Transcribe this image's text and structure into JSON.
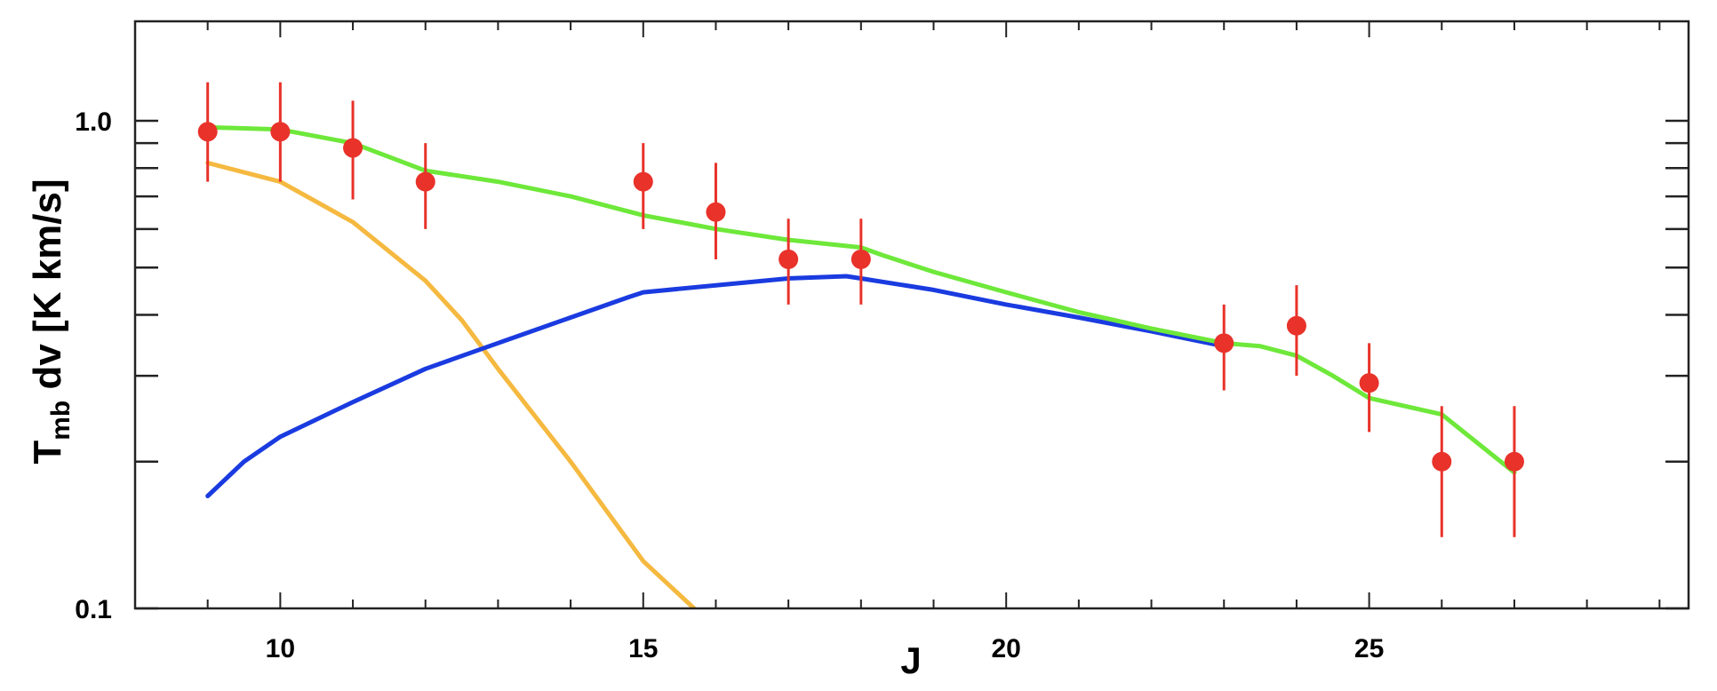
{
  "chart_data": {
    "type": "line",
    "title": "",
    "xlabel": "J",
    "ylabel": {
      "main": "T",
      "sub": "mb",
      "rest": " dv [K km/s]"
    },
    "xlim": [
      8,
      29.4
    ],
    "ylim": [
      0.1,
      1.6
    ],
    "yscale": "log",
    "grid": false,
    "legend": "none",
    "x_ticks": [
      10,
      15,
      20,
      25
    ],
    "x_tick_labels": [
      "10",
      "15",
      "20",
      "25"
    ],
    "y_ticks_labeled": [
      0.1,
      1.0
    ],
    "y_tick_labels": [
      "0.1",
      "1.0"
    ],
    "y_ticks_minor": [
      0.2,
      0.3,
      0.4,
      0.5,
      0.6,
      0.7,
      0.8,
      0.9
    ],
    "points": {
      "color": "#e8322a",
      "x": [
        9,
        10,
        11,
        12,
        15,
        16,
        17,
        18,
        23,
        24,
        25,
        26,
        27
      ],
      "y": [
        0.95,
        0.95,
        0.88,
        0.75,
        0.75,
        0.65,
        0.52,
        0.52,
        0.35,
        0.38,
        0.29,
        0.2,
        0.2
      ],
      "yerr_low": [
        0.75,
        0.75,
        0.69,
        0.6,
        0.6,
        0.52,
        0.42,
        0.42,
        0.28,
        0.3,
        0.23,
        0.14,
        0.14
      ],
      "yerr_high": [
        1.2,
        1.2,
        1.1,
        0.9,
        0.9,
        0.82,
        0.63,
        0.63,
        0.42,
        0.46,
        0.35,
        0.26,
        0.26
      ]
    },
    "series": [
      {
        "color": "#f5b940",
        "x": [
          9,
          10,
          11,
          12,
          12.5,
          13,
          14,
          15,
          15.7
        ],
        "y": [
          0.82,
          0.75,
          0.62,
          0.47,
          0.39,
          0.31,
          0.2,
          0.125,
          0.1
        ]
      },
      {
        "color": "#1a3be0",
        "x": [
          9,
          9.5,
          10,
          11,
          12,
          13,
          14,
          14.8,
          15,
          16,
          17,
          17.8,
          18,
          19,
          20,
          21,
          22,
          23
        ],
        "y": [
          0.17,
          0.2,
          0.225,
          0.265,
          0.31,
          0.35,
          0.395,
          0.435,
          0.445,
          0.46,
          0.475,
          0.48,
          0.475,
          0.45,
          0.42,
          0.395,
          0.37,
          0.345
        ]
      },
      {
        "color": "#6ee83a",
        "x": [
          9,
          10,
          11,
          12,
          13,
          14,
          15,
          16,
          17,
          18,
          18.3,
          19,
          20,
          21,
          22,
          23,
          23.5,
          24,
          24.5,
          25,
          26,
          27
        ],
        "y": [
          0.97,
          0.96,
          0.9,
          0.79,
          0.75,
          0.7,
          0.64,
          0.6,
          0.57,
          0.55,
          0.53,
          0.49,
          0.445,
          0.405,
          0.375,
          0.35,
          0.345,
          0.33,
          0.3,
          0.27,
          0.25,
          0.19
        ]
      }
    ]
  }
}
